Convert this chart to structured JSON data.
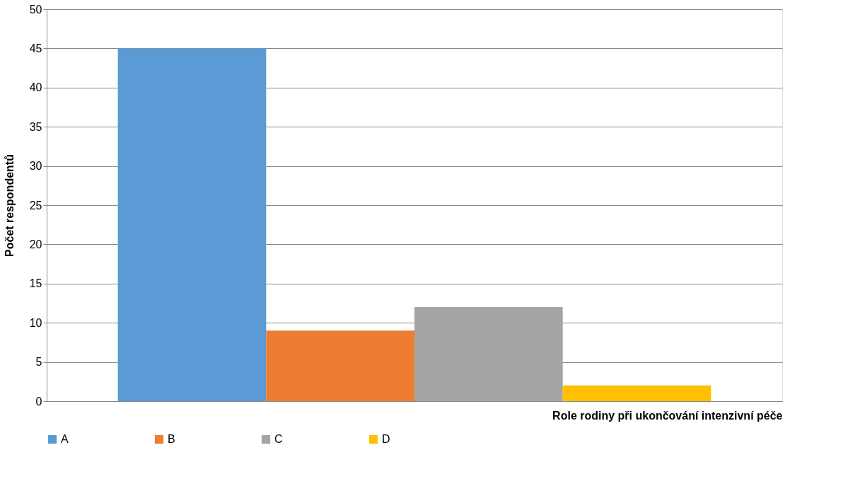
{
  "chart_data": {
    "type": "bar",
    "xlabel": "Role rodiny při ukončování intenzivní péče",
    "ylabel": "Počet respondentů",
    "categories": [
      null
    ],
    "series": [
      {
        "name": "A",
        "color": "#5b9bd5",
        "values": [
          45
        ]
      },
      {
        "name": "B",
        "color": "#ed7d31",
        "values": [
          9
        ]
      },
      {
        "name": "C",
        "color": "#a5a5a5",
        "values": [
          12
        ]
      },
      {
        "name": "D",
        "color": "#ffc000",
        "values": [
          2
        ]
      }
    ],
    "ylim": [
      0,
      50
    ],
    "yticks": [
      0,
      5,
      10,
      15,
      20,
      25,
      30,
      35,
      40,
      45,
      50
    ],
    "grid": "y",
    "legend": "bottom"
  }
}
